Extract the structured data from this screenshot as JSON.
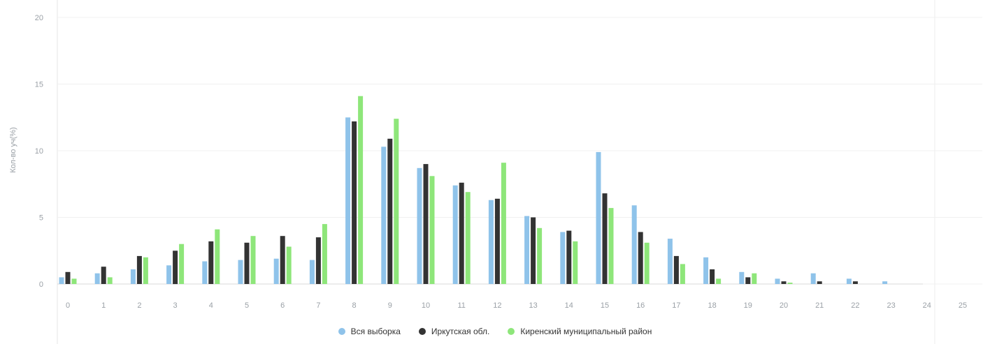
{
  "chart_data": {
    "type": "bar",
    "title": "",
    "xlabel": "",
    "ylabel": "Кол-во уч(%)",
    "ylim": [
      0,
      20
    ],
    "yticks": [
      0,
      5,
      10,
      15,
      20
    ],
    "categories": [
      "0",
      "1",
      "2",
      "3",
      "4",
      "5",
      "6",
      "7",
      "8",
      "9",
      "10",
      "11",
      "12",
      "13",
      "14",
      "15",
      "16",
      "17",
      "18",
      "19",
      "20",
      "21",
      "22",
      "23",
      "24",
      "25"
    ],
    "series": [
      {
        "name": "Вся выборка",
        "color": "#8fc3ea",
        "values": [
          0.5,
          0.8,
          1.1,
          1.4,
          1.7,
          1.8,
          1.9,
          1.8,
          12.5,
          10.3,
          8.7,
          7.4,
          6.3,
          5.1,
          3.9,
          9.9,
          5.9,
          3.4,
          2.0,
          0.9,
          0.4,
          0.8,
          0.4,
          0.2,
          0,
          0
        ]
      },
      {
        "name": "Иркутская обл.",
        "color": "#333333",
        "values": [
          0.9,
          1.3,
          2.1,
          2.5,
          3.2,
          3.1,
          3.6,
          3.5,
          12.2,
          10.9,
          9.0,
          7.6,
          6.4,
          5.0,
          4.0,
          6.8,
          3.9,
          2.1,
          1.1,
          0.5,
          0.2,
          0.2,
          0.2,
          0,
          0,
          0
        ]
      },
      {
        "name": "Киренский муниципальный район",
        "color": "#8ee67a",
        "values": [
          0.4,
          0.5,
          2.0,
          3.0,
          4.1,
          3.6,
          2.8,
          4.5,
          14.1,
          12.4,
          8.1,
          6.9,
          9.1,
          4.2,
          3.2,
          5.7,
          3.1,
          1.5,
          0.4,
          0.8,
          0.1,
          0,
          0,
          0,
          0,
          0
        ]
      }
    ],
    "grid": true,
    "legend_position": "bottom-center"
  }
}
